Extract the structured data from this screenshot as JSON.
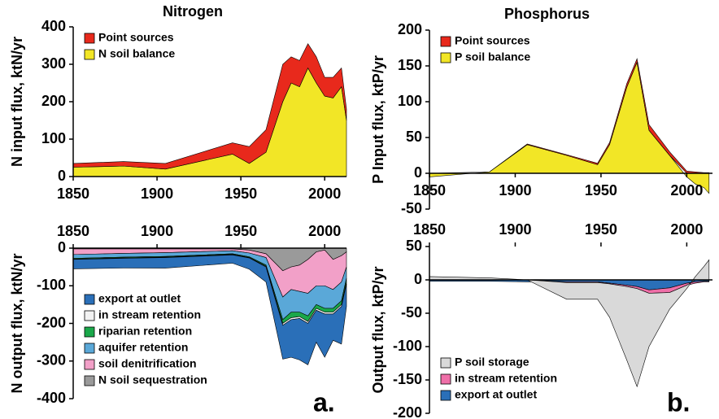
{
  "chart_data": [
    {
      "type": "area",
      "title": "Nitrogen",
      "y_label": "N input flux, ktN/yr",
      "stacked": true,
      "legend": "upper left",
      "x_axis_side": "bottom",
      "x": [
        1850,
        1880,
        1905,
        1945,
        1955,
        1965,
        1975,
        1980,
        1985,
        1990,
        1995,
        2000,
        2005,
        2010,
        2013
      ],
      "series": [
        {
          "name": "Point sources",
          "color": "#e8291c",
          "values": [
            10,
            12,
            15,
            30,
            45,
            60,
            100,
            70,
            70,
            65,
            70,
            50,
            55,
            50,
            30
          ]
        },
        {
          "name": "N soil balance",
          "color": "#f2e626",
          "values": [
            25,
            28,
            20,
            60,
            35,
            65,
            200,
            250,
            240,
            290,
            250,
            215,
            210,
            240,
            150
          ]
        }
      ],
      "xlim": [
        1850,
        2013
      ],
      "xticks": [
        1850,
        1900,
        1950,
        2000
      ],
      "ylim": [
        0,
        400
      ],
      "yticks": [
        0,
        100,
        200,
        300,
        400
      ]
    },
    {
      "type": "area",
      "y_label": "N output flux, ktN/yr",
      "stacked": true,
      "legend": "lower left",
      "x_axis_side": "top",
      "annotation": "a.",
      "x": [
        1850,
        1880,
        1905,
        1945,
        1955,
        1965,
        1975,
        1980,
        1985,
        1990,
        1995,
        2000,
        2005,
        2010,
        2013
      ],
      "series": [
        {
          "name": "export at outlet",
          "color": "#2a6fb8",
          "values": [
            -25,
            -26,
            -28,
            -22,
            -30,
            -40,
            -90,
            -100,
            -110,
            -110,
            -85,
            -115,
            -70,
            -100,
            -60
          ]
        },
        {
          "name": "in stream retention",
          "color": "#f2f2f2",
          "values": [
            -1,
            -1,
            -1,
            -1,
            -1,
            -2,
            -5,
            -5,
            -5,
            -5,
            -5,
            -5,
            -5,
            -5,
            -5
          ]
        },
        {
          "name": "riparian retention",
          "color": "#1aa84a",
          "values": [
            -2,
            -2,
            -2,
            -2,
            -2,
            -3,
            -10,
            -15,
            -12,
            -15,
            -10,
            -10,
            -10,
            -10,
            -10
          ]
        },
        {
          "name": "aquifer retention",
          "color": "#5aa8d8",
          "values": [
            -10,
            -10,
            -10,
            -8,
            -10,
            -20,
            -60,
            -60,
            -55,
            -60,
            -50,
            -60,
            -50,
            -50,
            -30
          ]
        },
        {
          "name": "soil denitrification",
          "color": "#f2a0c8",
          "values": [
            -15,
            -12,
            -10,
            -5,
            -8,
            -10,
            -70,
            -60,
            -70,
            -90,
            -90,
            -95,
            -80,
            -70,
            -40
          ]
        },
        {
          "name": "N soil sequestration",
          "color": "#9a9a9a",
          "values": [
            -2,
            -2,
            -2,
            -2,
            -5,
            -15,
            -60,
            -50,
            -45,
            -30,
            -10,
            -5,
            -30,
            -20,
            -10
          ]
        }
      ],
      "xlim": [
        1850,
        2013
      ],
      "xticks": [
        1850,
        1900,
        1950,
        2000
      ],
      "ylim": [
        -400,
        0
      ],
      "yticks": [
        -400,
        -300,
        -200,
        -100,
        0
      ]
    },
    {
      "type": "area",
      "title": "Phosphorus",
      "y_label": "P Input flux, ktP/yr",
      "stacked": true,
      "legend": "upper left",
      "x_axis_side": "bottom",
      "x": [
        1850,
        1885,
        1907,
        1930,
        1948,
        1955,
        1965,
        1971,
        1978,
        1990,
        2000,
        2005,
        2010,
        2013
      ],
      "series": [
        {
          "name": "Point sources",
          "color": "#e8291c",
          "values": [
            0,
            0,
            1,
            1,
            2,
            3,
            5,
            5,
            8,
            5,
            3,
            2,
            1,
            1
          ]
        },
        {
          "name": "P soil balance",
          "color": "#f2e626",
          "values": [
            -5,
            2,
            40,
            25,
            12,
            40,
            120,
            155,
            60,
            25,
            -5,
            -15,
            -20,
            -28
          ]
        }
      ],
      "xlim": [
        1850,
        2015
      ],
      "xticks": [
        1850,
        1900,
        1950,
        2000
      ],
      "ylim": [
        -50,
        200
      ],
      "yticks": [
        -50,
        0,
        50,
        100,
        150,
        200
      ]
    },
    {
      "type": "area",
      "y_label": "Output flux, ktP/yr",
      "stacked": true,
      "legend": "lower left",
      "x_axis_side": "top",
      "annotation": "b.",
      "x": [
        1850,
        1885,
        1907,
        1930,
        1948,
        1955,
        1965,
        1971,
        1978,
        1990,
        2000,
        2005,
        2010,
        2013
      ],
      "series": [
        {
          "name": "P soil storage",
          "color": "#d9d9d9",
          "values": [
            5,
            3,
            0,
            -25,
            -25,
            -50,
            -110,
            -147,
            -80,
            -25,
            -5,
            5,
            20,
            30
          ]
        },
        {
          "name": "in stream retention",
          "color": "#ef6fa8",
          "values": [
            0,
            0,
            0,
            -1,
            -1,
            -1,
            -2,
            -3,
            -5,
            -7,
            -3,
            -2,
            -1,
            -1
          ]
        },
        {
          "name": "export at outlet",
          "color": "#2a6fb8",
          "values": [
            -2,
            -2,
            -3,
            -3,
            -3,
            -5,
            -8,
            -10,
            -15,
            -12,
            -5,
            -3,
            -2,
            -2
          ]
        }
      ],
      "xlim": [
        1850,
        2015
      ],
      "xticks": [
        1850,
        1900,
        1950,
        2000
      ],
      "ylim": [
        -200,
        50
      ],
      "yticks": [
        -200,
        -150,
        -100,
        -50,
        0,
        50
      ]
    }
  ]
}
